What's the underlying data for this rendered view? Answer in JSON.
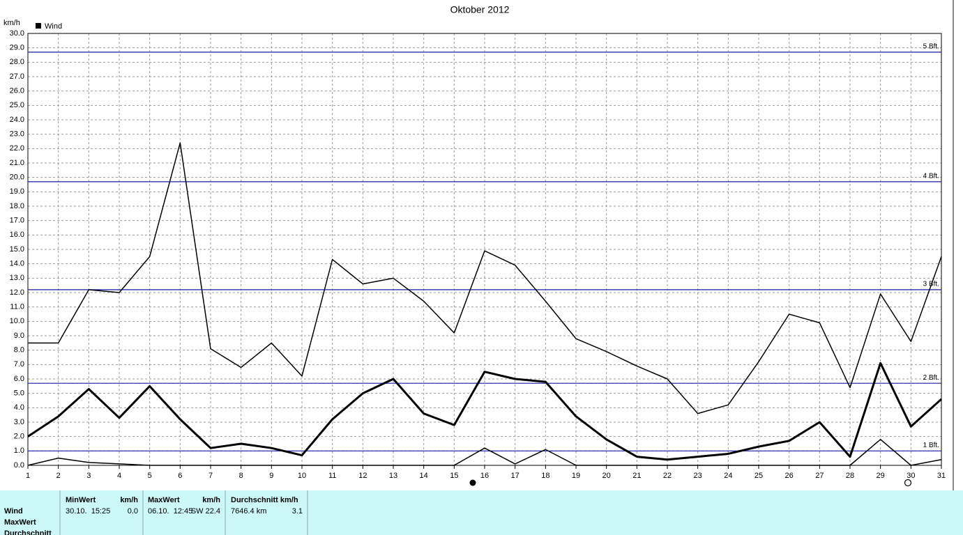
{
  "chart_data": {
    "type": "line",
    "title": "Oktober 2012",
    "y_unit": "km/h",
    "legend": "Wind",
    "x": [
      1,
      2,
      3,
      4,
      5,
      6,
      7,
      8,
      9,
      10,
      11,
      12,
      13,
      14,
      15,
      16,
      17,
      18,
      19,
      20,
      21,
      22,
      23,
      24,
      25,
      26,
      27,
      28,
      29,
      30,
      31
    ],
    "xlim": [
      1,
      31
    ],
    "xticks": [
      1,
      2,
      3,
      4,
      5,
      6,
      7,
      8,
      9,
      10,
      11,
      12,
      13,
      14,
      15,
      16,
      17,
      18,
      19,
      20,
      21,
      22,
      23,
      24,
      25,
      26,
      27,
      28,
      29,
      30,
      31
    ],
    "ylim": [
      0,
      30
    ],
    "yticks": [
      {
        "value": 0,
        "label": "0.0"
      },
      {
        "value": 1,
        "label": "1.0"
      },
      {
        "value": 2,
        "label": "2.0"
      },
      {
        "value": 3,
        "label": "3.0"
      },
      {
        "value": 4,
        "label": "4.0"
      },
      {
        "value": 5,
        "label": "5.0"
      },
      {
        "value": 6,
        "label": "6.0"
      },
      {
        "value": 7,
        "label": "7.0"
      },
      {
        "value": 8,
        "label": "8.0"
      },
      {
        "value": 9,
        "label": "9.0"
      },
      {
        "value": 10,
        "label": "10.0"
      },
      {
        "value": 11,
        "label": "11.0"
      },
      {
        "value": 12,
        "label": "12.0"
      },
      {
        "value": 13,
        "label": "13.0"
      },
      {
        "value": 14,
        "label": "14.0"
      },
      {
        "value": 15,
        "label": "15.0"
      },
      {
        "value": 16,
        "label": "16.0"
      },
      {
        "value": 17,
        "label": "17.0"
      },
      {
        "value": 18,
        "label": "18.0"
      },
      {
        "value": 19,
        "label": "19.0"
      },
      {
        "value": 20,
        "label": "20.0"
      },
      {
        "value": 21,
        "label": "21.0"
      },
      {
        "value": 22,
        "label": "22.0"
      },
      {
        "value": 23,
        "label": "23.0"
      },
      {
        "value": 24,
        "label": "24.0"
      },
      {
        "value": 25,
        "label": "25.0"
      },
      {
        "value": 26,
        "label": "26.0"
      },
      {
        "value": 27,
        "label": "27.0"
      },
      {
        "value": 28,
        "label": "28.0"
      },
      {
        "value": 29,
        "label": "29.0"
      },
      {
        "value": 30,
        "label": "30.0"
      }
    ],
    "grid": true,
    "series": [
      {
        "color": "#000000",
        "line_width": 1.5,
        "values": [
          8.5,
          8.5,
          12.2,
          12.0,
          14.5,
          22.4,
          8.1,
          6.8,
          8.5,
          6.2,
          14.3,
          12.6,
          13.0,
          11.4,
          9.2,
          14.9,
          13.9,
          11.4,
          8.8,
          7.9,
          6.9,
          6.0,
          3.6,
          4.2,
          7.2,
          10.5,
          9.9,
          5.4,
          11.9,
          8.6,
          14.5
        ]
      },
      {
        "color": "#000000",
        "line_width": 3,
        "values": [
          2.0,
          3.4,
          5.3,
          3.3,
          5.5,
          3.2,
          1.2,
          1.5,
          1.2,
          0.7,
          3.2,
          5.0,
          6.0,
          3.6,
          2.8,
          6.5,
          6.0,
          5.8,
          3.4,
          1.8,
          0.6,
          0.4,
          0.6,
          0.8,
          1.3,
          1.7,
          3.0,
          0.6,
          7.1,
          2.7,
          4.6
        ]
      },
      {
        "color": "#000000",
        "line_width": 1.5,
        "values": [
          0.0,
          0.5,
          0.2,
          0.1,
          0.0,
          0.0,
          0.0,
          0.0,
          0.0,
          0.0,
          0.0,
          0.0,
          0.0,
          0.0,
          0.0,
          1.2,
          0.1,
          1.1,
          0.0,
          0.0,
          0.0,
          0.0,
          0.0,
          0.0,
          0.0,
          0.0,
          0.0,
          0.0,
          1.8,
          0.0,
          0.4
        ]
      }
    ],
    "reference_lines": [
      {
        "value": 1.0,
        "label": "1 Bft."
      },
      {
        "value": 5.7,
        "label": "2 Bft."
      },
      {
        "value": 12.2,
        "label": "3 Bft."
      },
      {
        "value": 19.7,
        "label": "4 Bft."
      },
      {
        "value": 28.7,
        "label": "5 Bft."
      }
    ],
    "reference_color": "#1a1aa8"
  },
  "summary_table": {
    "header": [
      "MinWert",
      "km/h",
      "MaxWert",
      "km/h",
      "Durchschnitt km/h"
    ],
    "row_labels": [
      "Wind",
      "MaxWert",
      "Durchschnitt"
    ],
    "row": [
      "30.10.  15:25",
      "0.0",
      "06.10.  12:45",
      "SW 22.4",
      "7646.4 km",
      "3.1"
    ]
  }
}
